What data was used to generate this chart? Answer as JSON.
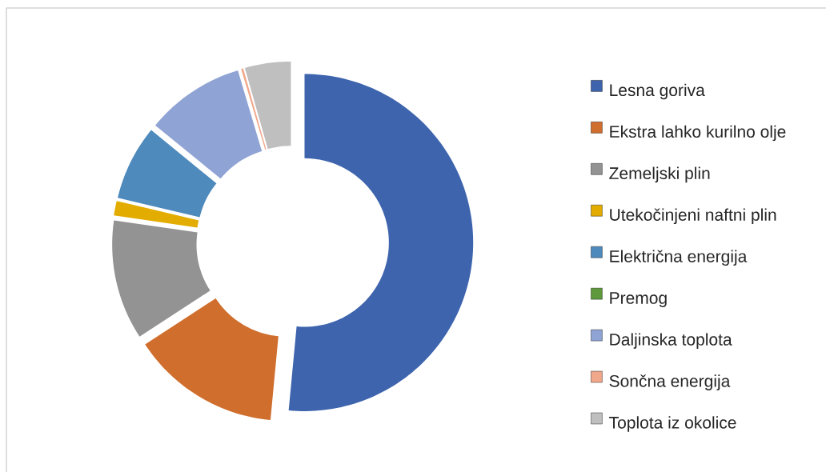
{
  "chart_data": {
    "type": "donut",
    "categories": [
      "Lesna goriva",
      "Ekstra lahko kurilno olje",
      "Zemeljski plin",
      "Utekočinjeni naftni plin",
      "Električna energija",
      "Premog",
      "Daljinska toplota",
      "Sončna energija",
      "Toplota iz okolice"
    ],
    "values": [
      51.5,
      14.3,
      11.5,
      1.4,
      7.2,
      0,
      9.5,
      0.2,
      4.4
    ],
    "colors": [
      "#3d64ad",
      "#d06e2d",
      "#939393",
      "#e3ac00",
      "#4e8abc",
      "#5e9a3d",
      "#8fa3d4",
      "#f1a78a",
      "#bfbfbf"
    ],
    "legend": "right"
  }
}
